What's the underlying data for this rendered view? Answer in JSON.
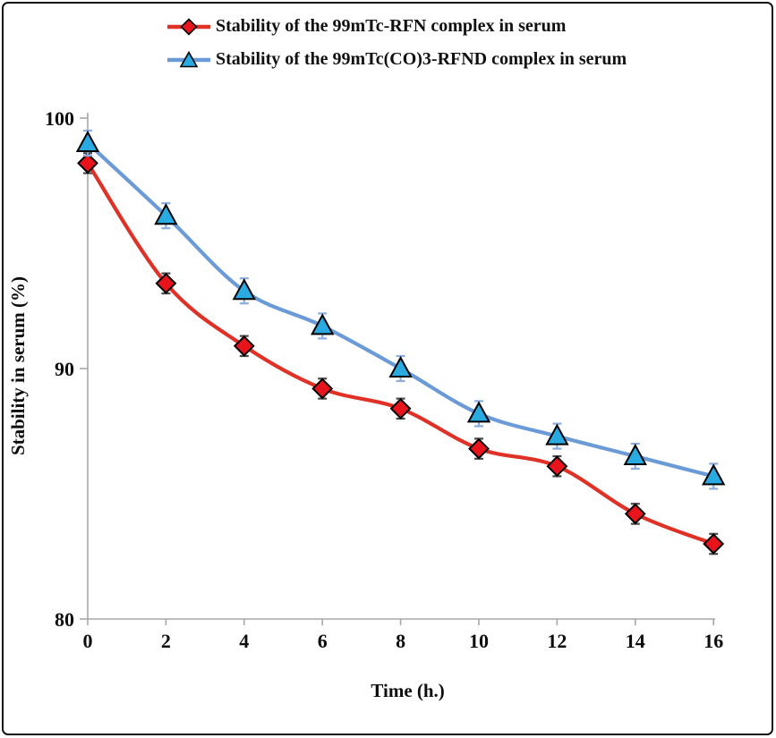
{
  "colors": {
    "background": "#FFFFFF",
    "frame_border": "#141414",
    "axis": "#A8A8A8",
    "text": "#0d0d0d"
  },
  "chart_data": {
    "type": "line",
    "title": "",
    "xlabel": "Time (h.)",
    "ylabel": "Stability in serum  (%)",
    "x": [
      0,
      2,
      4,
      6,
      8,
      10,
      12,
      14,
      16
    ],
    "xticks": [
      0,
      2,
      4,
      6,
      8,
      10,
      12,
      14,
      16
    ],
    "yticks": [
      80,
      90,
      100
    ],
    "xlim": [
      0,
      16
    ],
    "ylim": [
      80,
      101
    ],
    "grid": false,
    "legend_position": "top-left",
    "series": [
      {
        "id": "rfn",
        "name": "Stability of the 99mTc-RFN complex in serum",
        "values": [
          98.2,
          93.4,
          90.9,
          89.2,
          88.4,
          86.8,
          86.1,
          84.2,
          83.0
        ],
        "error": 0.4,
        "marker": "diamond",
        "line_color": "#E03127",
        "marker_fill": "#E8141C",
        "error_color": "#4A4A4A"
      },
      {
        "id": "rfnd",
        "name": "Stability of the 99mTc(CO)3-RFND complex in serum",
        "values": [
          99.0,
          96.1,
          93.1,
          91.7,
          90.0,
          88.2,
          87.3,
          86.5,
          85.7
        ],
        "error": 0.5,
        "marker": "triangle",
        "line_color": "#6B9BD7",
        "marker_fill": "#29ABE2",
        "error_color": "#8AACDE"
      }
    ]
  }
}
